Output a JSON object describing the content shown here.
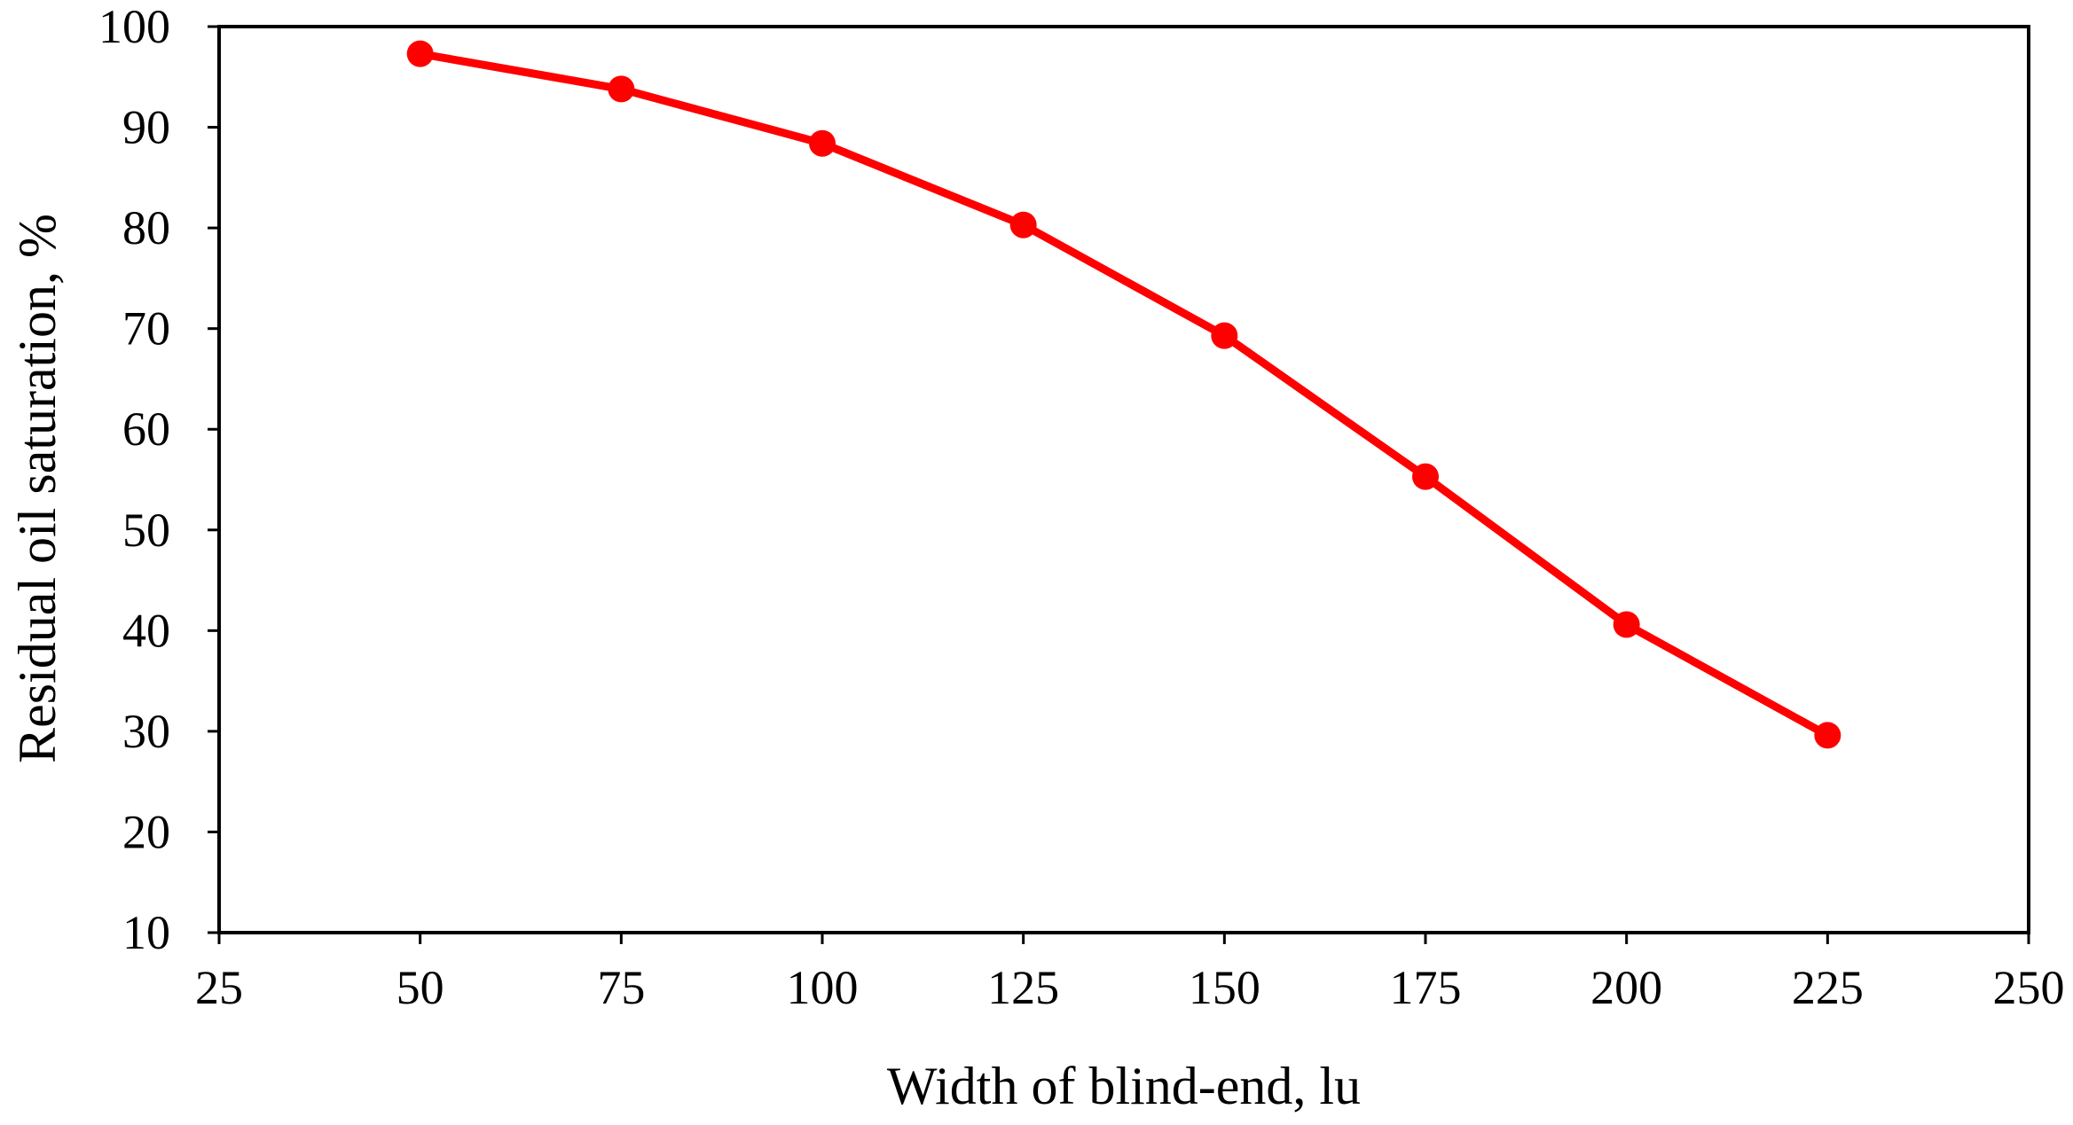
{
  "chart_data": {
    "type": "line",
    "title": "",
    "xlabel": "Width of blind-end, lu",
    "ylabel": "Residual oil saturation, %",
    "xlim": [
      25,
      250
    ],
    "ylim": [
      10,
      100
    ],
    "x_ticks": [
      25,
      50,
      75,
      100,
      125,
      150,
      175,
      200,
      225,
      250
    ],
    "y_ticks": [
      10,
      20,
      30,
      40,
      50,
      60,
      70,
      80,
      90,
      100
    ],
    "grid": false,
    "legend": "none",
    "series": [
      {
        "color": "#ff0000",
        "marker": "circle",
        "x": [
          50,
          75,
          100,
          125,
          150,
          175,
          200,
          225
        ],
        "y": [
          97.3,
          93.8,
          88.4,
          80.3,
          69.3,
          55.3,
          40.6,
          29.6
        ]
      }
    ]
  }
}
